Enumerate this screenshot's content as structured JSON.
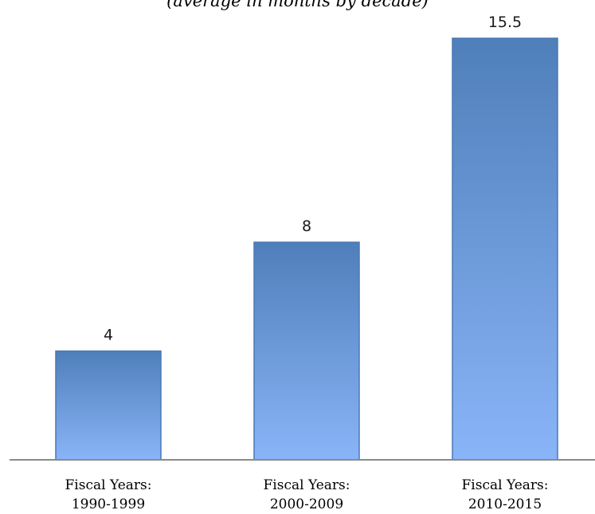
{
  "colors": {
    "bar_top": "#4f7fba",
    "bar_bottom": "#8ab4f8",
    "bar_border": "#4a79b4",
    "axis": "#8a8a8a"
  },
  "chart_data": {
    "type": "bar",
    "title": "",
    "subtitle": "(average in months by decade)",
    "xlabel": "",
    "ylabel": "",
    "categories": [
      [
        "Fiscal Years:",
        "1990-1999"
      ],
      [
        "Fiscal Years:",
        "2000-2009"
      ],
      [
        "Fiscal Years:",
        "2010-2015"
      ]
    ],
    "values": [
      4,
      8,
      15.5
    ],
    "value_labels": [
      "4",
      "8",
      "15.5"
    ],
    "ylim": [
      0,
      15.5
    ],
    "grid": false,
    "legend": "none",
    "data_labels": "above bars"
  }
}
